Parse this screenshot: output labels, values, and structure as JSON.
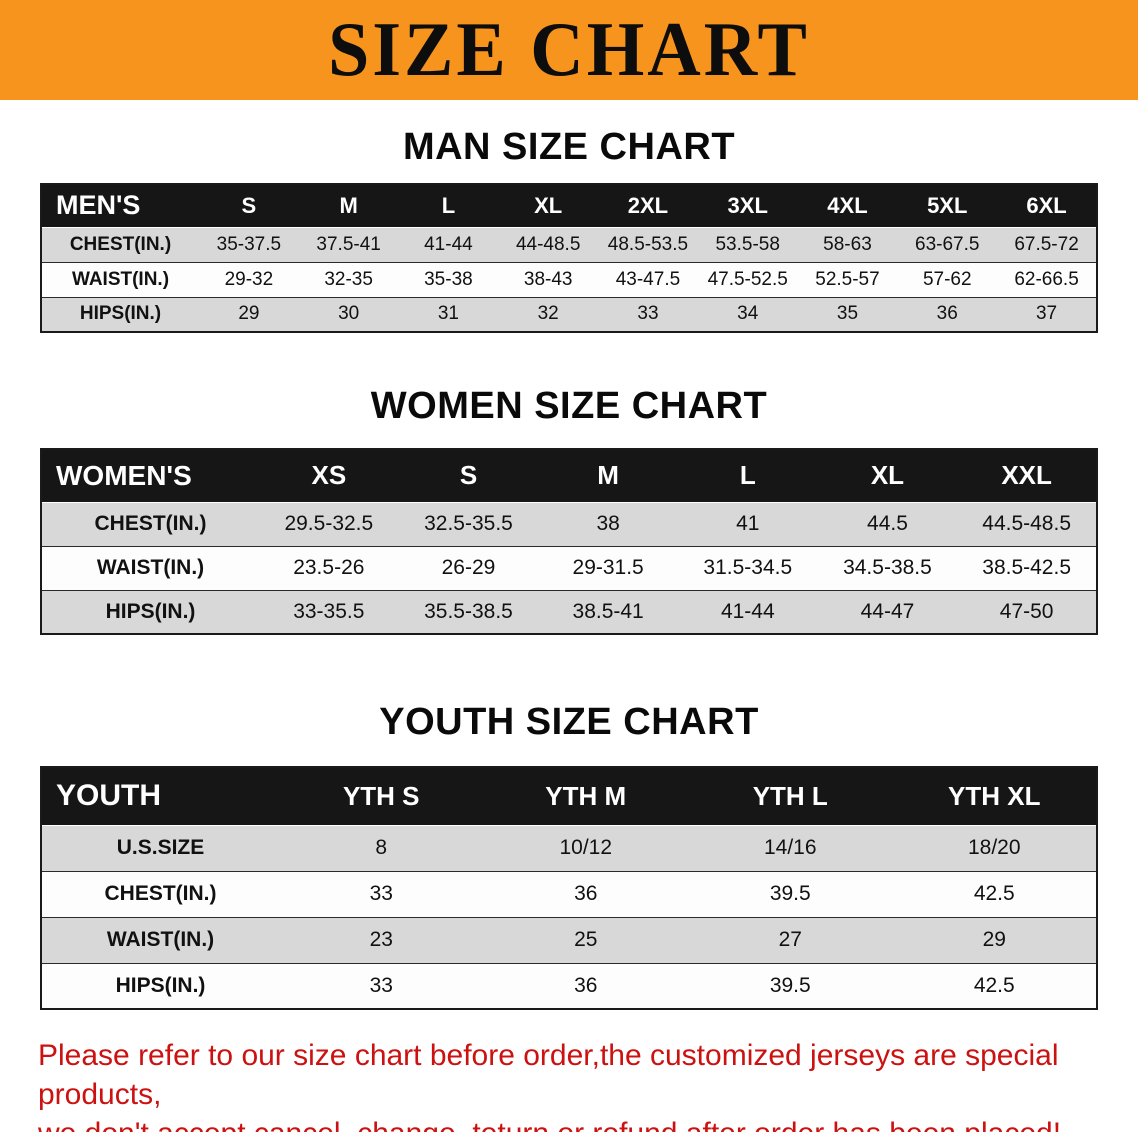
{
  "banner": {
    "title": "SIZE CHART",
    "bg_color": "#f7941d"
  },
  "sections": [
    {
      "id": "men",
      "heading": "MAN SIZE CHART",
      "table": {
        "corner": "MEN'S",
        "columns": [
          "S",
          "M",
          "L",
          "XL",
          "2XL",
          "3XL",
          "4XL",
          "5XL",
          "6XL"
        ],
        "rows": [
          {
            "label": "CHEST(IN.)",
            "values": [
              "35-37.5",
              "37.5-41",
              "41-44",
              "44-48.5",
              "48.5-53.5",
              "53.5-58",
              "58-63",
              "63-67.5",
              "67.5-72"
            ]
          },
          {
            "label": "WAIST(IN.)",
            "values": [
              "29-32",
              "32-35",
              "35-38",
              "38-43",
              "43-47.5",
              "47.5-52.5",
              "52.5-57",
              "57-62",
              "62-66.5"
            ]
          },
          {
            "label": "HIPS(IN.)",
            "values": [
              "29",
              "30",
              "31",
              "32",
              "33",
              "34",
              "35",
              "36",
              "37"
            ]
          }
        ]
      }
    },
    {
      "id": "women",
      "heading": "WOMEN SIZE CHART",
      "table": {
        "corner": "WOMEN'S",
        "columns": [
          "XS",
          "S",
          "M",
          "L",
          "XL",
          "XXL"
        ],
        "rows": [
          {
            "label": "CHEST(IN.)",
            "values": [
              "29.5-32.5",
              "32.5-35.5",
              "38",
              "41",
              "44.5",
              "44.5-48.5"
            ]
          },
          {
            "label": "WAIST(IN.)",
            "values": [
              "23.5-26",
              "26-29",
              "29-31.5",
              "31.5-34.5",
              "34.5-38.5",
              "38.5-42.5"
            ]
          },
          {
            "label": "HIPS(IN.)",
            "values": [
              "33-35.5",
              "35.5-38.5",
              "38.5-41",
              "41-44",
              "44-47",
              "47-50"
            ]
          }
        ]
      }
    },
    {
      "id": "youth",
      "heading": "YOUTH SIZE CHART",
      "table": {
        "corner": "YOUTH",
        "columns": [
          "YTH S",
          "YTH M",
          "YTH L",
          "YTH XL"
        ],
        "rows": [
          {
            "label": "U.S.SIZE",
            "values": [
              "8",
              "10/12",
              "14/16",
              "18/20"
            ]
          },
          {
            "label": "CHEST(IN.)",
            "values": [
              "33",
              "36",
              "39.5",
              "42.5"
            ]
          },
          {
            "label": "WAIST(IN.)",
            "values": [
              "23",
              "25",
              "27",
              "29"
            ]
          },
          {
            "label": "HIPS(IN.)",
            "values": [
              "33",
              "36",
              "39.5",
              "42.5"
            ]
          }
        ]
      }
    }
  ],
  "footer": {
    "color": "#cc1111",
    "lines": [
      "Please refer to our size chart before order,the customized jerseys are special products,",
      "we don't accept cancel, change, teturn or refund after order has been placed!"
    ]
  }
}
